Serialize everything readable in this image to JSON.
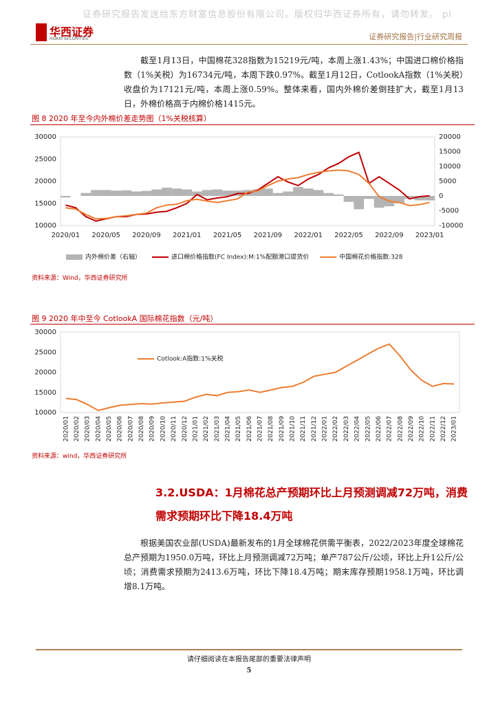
{
  "watermark": "证券研究报告发送给东方财富信息股份有限公司。版权归华西证券所有，请勿转发。 pl",
  "header": {
    "logo_cn": "华西证券",
    "logo_en": "HUAXI SECURITIES",
    "report_type": "证券研究报告|行业研究周报"
  },
  "paragraphs": [
    "截至1月13日，中国棉花328指数为15219元/吨，本周上涨1.43%；中国进口棉价格指数（1%关税）为16734元/吨，本周下跌0.97%。截至1月12日，CotlookA指数（1%关税）收盘价为17121元/吨，本周上涨0.59%。整体来看，国内外棉价差倒挂扩大，截至1月13日，外棉价格高于内棉价格1415元。",
    "根据美国农业部(USDA)最新发布的1月全球棉花供需平衡表，2022/2023年度全球棉花总产预期为1950.0万吨，环比上月预测调减72万吨；单产787公斤/公顷，环比上升1公斤/公顷；消费需求预期为2413.6万吨，环比下降18.4万吨；期末库存预期1958.1万吨，环比调增8.1万吨。"
  ],
  "section_heading": "3.2.USDA：1月棉花总产预期环比上月预测调减72万吨，消费需求预期环比下降18.4万吨",
  "footer": {
    "notice": "请仔细阅读在本报告尾部的重要法律声明",
    "page": "5"
  },
  "chart_data": [
    {
      "type": "line",
      "title": "图 8 2020 年至今内外棉价差走势图（1%关税核算）",
      "source": "资料来源：Wind，华西证券研究所",
      "categories": [
        "2020/01",
        null,
        null,
        null,
        "2020/05",
        null,
        null,
        null,
        "2020/09",
        null,
        null,
        null,
        "2021/01",
        null,
        null,
        null,
        "2021/05",
        null,
        null,
        null,
        "2021/09",
        null,
        null,
        null,
        "2022/01",
        null,
        null,
        null,
        "2022/05",
        null,
        null,
        null,
        "2022/09",
        null,
        null,
        null,
        "2023/01"
      ],
      "ylim": [
        10000,
        30000
      ],
      "yticks": [
        10000,
        15000,
        20000,
        25000,
        30000
      ],
      "y2lim": [
        -10000,
        20000
      ],
      "y2ticks": [
        -10000,
        -5000,
        0,
        5000,
        10000,
        15000,
        20000
      ],
      "grid": false,
      "legend": "bottom",
      "series": [
        {
          "name": "内外棉价差（右轴）",
          "type": "bar",
          "axis": "y2",
          "color": "#b4b4b4",
          "values": [
            -500,
            0,
            1000,
            2000,
            2000,
            1800,
            1900,
            1500,
            1700,
            2200,
            2800,
            2500,
            2200,
            1500,
            2000,
            2200,
            1800,
            1800,
            2000,
            2200,
            2500,
            1000,
            1500,
            3000,
            2500,
            2000,
            1000,
            500,
            -2000,
            -4500,
            -1000,
            -4000,
            -3500,
            -2500,
            -1000,
            -1500,
            -1500
          ]
        },
        {
          "name": "进口棉价格指数(FC Index):M:1%配额港口提货价",
          "type": "line",
          "color": "#c00000",
          "values": [
            14600,
            14000,
            12000,
            11000,
            11500,
            12000,
            12000,
            12500,
            12600,
            13000,
            13200,
            14000,
            15000,
            17000,
            15800,
            16200,
            16500,
            17200,
            17200,
            18000,
            19500,
            21000,
            19800,
            19000,
            20500,
            21500,
            23000,
            24000,
            25500,
            26500,
            19500,
            21000,
            19500,
            18000,
            16000,
            16500,
            16700
          ]
        },
        {
          "name": "中国棉花价格指数:328",
          "type": "line",
          "color": "#ed7d31",
          "values": [
            14000,
            13700,
            12500,
            11500,
            11600,
            12000,
            12200,
            12500,
            12800,
            14000,
            14600,
            14800,
            15600,
            15900,
            15500,
            15200,
            15600,
            16000,
            17500,
            17800,
            19000,
            20000,
            20500,
            20800,
            21500,
            22000,
            22300,
            22500,
            22300,
            21500,
            19500,
            16500,
            15500,
            15200,
            14500,
            14700,
            15200
          ]
        }
      ]
    },
    {
      "type": "line",
      "title": "图 9 2020 年中至今 CotlookA 国际棉花指数（元/吨）",
      "source": "资料来源：wind，华西证券研究所",
      "categories": [
        "2020/01",
        "2020/02",
        "2020/03",
        "2020/04",
        "2020/05",
        "2020/06",
        "2020/07",
        "2020/08",
        "2020/09",
        "2020/10",
        "2020/11",
        "2020/12",
        "2021/01",
        "2021/02",
        "2021/03",
        "2021/04",
        "2021/05",
        "2021/06",
        "2021/07",
        "2021/08",
        "2021/09",
        "2021/10",
        "2021/11",
        "2021/12",
        "2022/01",
        "2022/02",
        "2022/03",
        "2022/04",
        "2022/05",
        "2022/06",
        "2022/07",
        "2022/08",
        "2022/09",
        "2022/10",
        "2022/11",
        "2022/12",
        "2023/01"
      ],
      "ylim": [
        10000,
        30000
      ],
      "yticks": [
        10000,
        15000,
        20000,
        25000,
        30000
      ],
      "grid": false,
      "legend": "upper left",
      "series": [
        {
          "name": "Cotlook:A指数:1%关税",
          "type": "line",
          "color": "#ed7d31",
          "values": [
            13500,
            13200,
            12000,
            10500,
            11200,
            11800,
            12000,
            12200,
            12100,
            12400,
            12600,
            12800,
            13800,
            14500,
            14200,
            15000,
            15200,
            15600,
            15000,
            15600,
            16200,
            16500,
            17500,
            19000,
            19500,
            20000,
            21500,
            23000,
            24500,
            26000,
            27000,
            24000,
            20500,
            18000,
            16500,
            17200,
            17100
          ]
        }
      ]
    }
  ]
}
